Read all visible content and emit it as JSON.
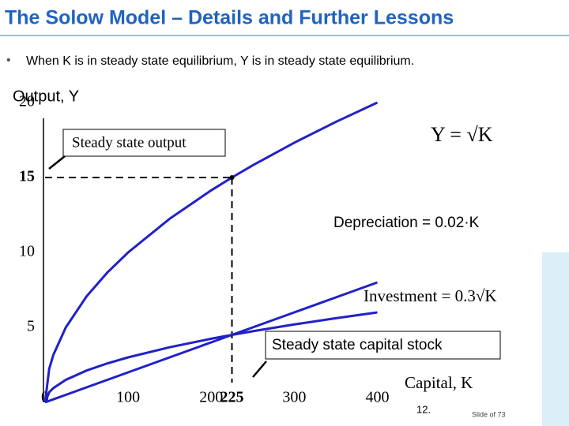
{
  "slide_title": "The Solow Model – Details and Further Lessons",
  "bullet": "When K is in steady state equilibrium, Y is in steady state equilibrium.",
  "footer": {
    "page": "12.",
    "slide": "Slide of 73"
  },
  "chart_data": {
    "type": "line",
    "y_label": "Output, Y",
    "x_label": "Capital, K",
    "annotations": {
      "output": "Steady state output",
      "capital": "Steady state capital stock"
    },
    "x": [
      0,
      5,
      10,
      25,
      50,
      75,
      100,
      150,
      200,
      225,
      250,
      300,
      350,
      400
    ],
    "series": [
      {
        "name": "Y = √K",
        "color": "#2121c8",
        "values": [
          0,
          2.236,
          3.162,
          5,
          7.071,
          8.66,
          10,
          12.247,
          14.142,
          15,
          15.811,
          17.321,
          18.708,
          20
        ]
      },
      {
        "name": "Depreciation = 0.02·K",
        "color": "#2121c8",
        "values": [
          0,
          0.1,
          0.2,
          0.5,
          1,
          1.5,
          2,
          3,
          4,
          4.5,
          5,
          6,
          7,
          8
        ]
      },
      {
        "name": "Investment = 0.3√K",
        "color": "#2121c8",
        "values": [
          0,
          0.671,
          0.949,
          1.5,
          2.121,
          2.598,
          3,
          3.674,
          4.243,
          4.5,
          4.743,
          5.196,
          5.612,
          6
        ]
      }
    ],
    "steady_state": {
      "x": 225,
      "y": 15
    },
    "xlim": [
      0,
      450
    ],
    "ylim": [
      0,
      20
    ],
    "xticks": [
      0,
      100,
      200,
      225,
      300,
      400
    ],
    "yticks": [
      5,
      10,
      15,
      20
    ]
  }
}
